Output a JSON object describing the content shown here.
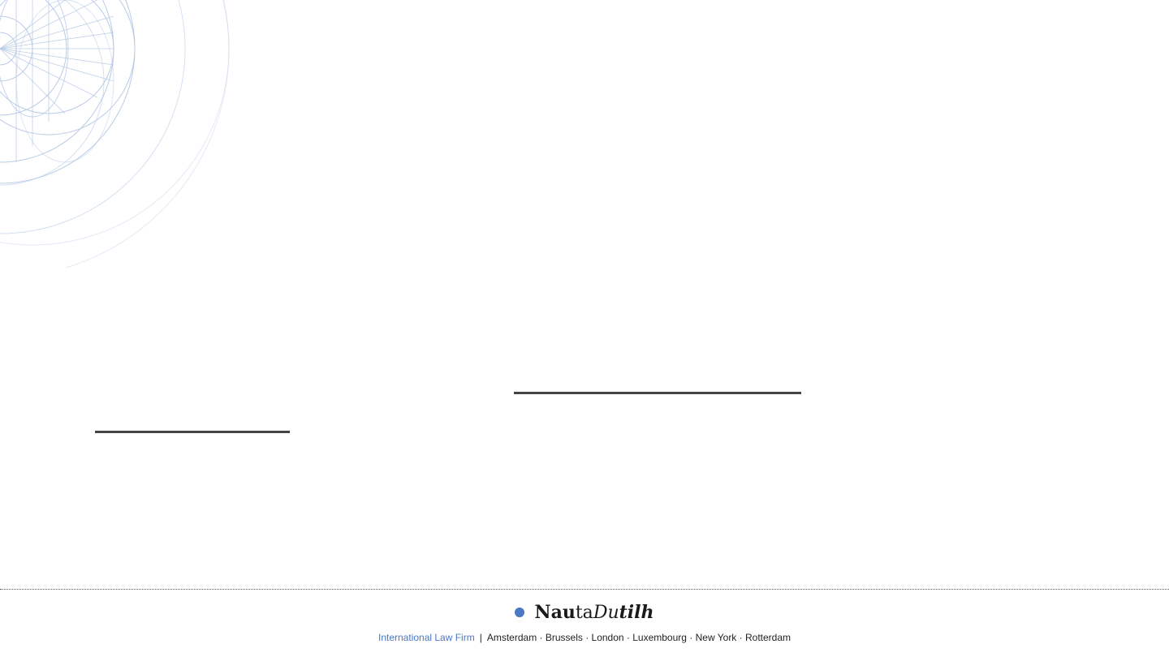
{
  "brand": {
    "logo_part1": "Nau",
    "logo_part2": "ta",
    "logo_part3": "Du",
    "logo_part4": "tilh",
    "accent_color": "#4a78c2",
    "logo_dot_color": "#4a78c2"
  },
  "footer": {
    "firm_type": "International Law Firm",
    "separator": "|",
    "offices": "Amsterdam · Brussels · London · Luxembourg · New York · Rotterdam"
  },
  "icons": {
    "decor": "circle-pattern-icon"
  }
}
